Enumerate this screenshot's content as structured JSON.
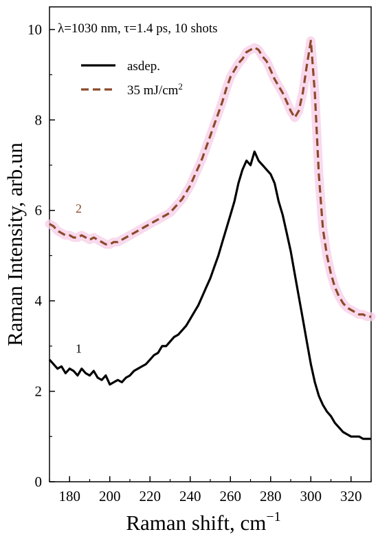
{
  "chart_data": {
    "type": "line",
    "annotation": "λ=1030 nm, τ=1.4 ps, 10 shots",
    "xlabel_main": "Raman shift, cm",
    "xlabel_sup": "−1",
    "ylabel": "Raman Intensity, arb.un",
    "xlim": [
      170,
      330
    ],
    "ylim": [
      0,
      10.5
    ],
    "xticks": [
      180,
      200,
      220,
      240,
      260,
      280,
      300,
      320
    ],
    "yticks": [
      0,
      2,
      4,
      6,
      8,
      10
    ],
    "legend_position": "top-left",
    "legend": [
      {
        "series": 0,
        "text": "asdep.",
        "sup": ""
      },
      {
        "series": 1,
        "text": "35 mJ/cm",
        "sup": "2"
      }
    ],
    "curve_labels": [
      {
        "text": "1",
        "x": 183,
        "y": 2.85
      },
      {
        "text": "2",
        "x": 183,
        "y": 5.95
      }
    ],
    "series": [
      {
        "name": "asdep.",
        "color": "#000000",
        "style": "solid",
        "x": [
          170,
          172,
          174,
          176,
          178,
          180,
          182,
          184,
          186,
          188,
          190,
          192,
          194,
          196,
          198,
          200,
          202,
          204,
          206,
          208,
          210,
          212,
          214,
          216,
          218,
          220,
          222,
          224,
          226,
          228,
          230,
          232,
          234,
          236,
          238,
          240,
          242,
          244,
          246,
          248,
          250,
          252,
          254,
          256,
          258,
          260,
          262,
          264,
          266,
          268,
          270,
          272,
          274,
          276,
          278,
          280,
          282,
          284,
          286,
          288,
          290,
          292,
          294,
          296,
          298,
          300,
          302,
          304,
          306,
          308,
          310,
          312,
          314,
          316,
          318,
          320,
          322,
          324,
          326,
          328,
          330
        ],
        "y": [
          2.7,
          2.6,
          2.5,
          2.55,
          2.4,
          2.5,
          2.45,
          2.35,
          2.5,
          2.4,
          2.35,
          2.45,
          2.3,
          2.25,
          2.35,
          2.15,
          2.2,
          2.25,
          2.2,
          2.3,
          2.35,
          2.45,
          2.5,
          2.55,
          2.6,
          2.7,
          2.8,
          2.85,
          3.0,
          3.0,
          3.1,
          3.2,
          3.25,
          3.35,
          3.45,
          3.6,
          3.75,
          3.9,
          4.1,
          4.3,
          4.5,
          4.75,
          5.0,
          5.3,
          5.6,
          5.9,
          6.2,
          6.6,
          6.9,
          7.1,
          7.0,
          7.3,
          7.1,
          7.0,
          6.9,
          6.8,
          6.6,
          6.2,
          5.9,
          5.5,
          5.1,
          4.6,
          4.1,
          3.6,
          3.1,
          2.6,
          2.2,
          1.9,
          1.7,
          1.55,
          1.45,
          1.3,
          1.2,
          1.1,
          1.05,
          1.0,
          1.0,
          1.0,
          0.95,
          0.95,
          0.95
        ]
      },
      {
        "name": "35 mJ/cm²",
        "color": "#8b4a2b",
        "style": "dashed",
        "x": [
          170,
          172,
          174,
          176,
          178,
          180,
          182,
          184,
          186,
          188,
          190,
          192,
          194,
          196,
          198,
          200,
          202,
          204,
          206,
          208,
          210,
          212,
          214,
          216,
          218,
          220,
          222,
          224,
          226,
          228,
          230,
          232,
          234,
          236,
          238,
          240,
          242,
          244,
          246,
          248,
          250,
          252,
          254,
          256,
          258,
          260,
          262,
          264,
          266,
          268,
          270,
          272,
          274,
          276,
          278,
          280,
          282,
          284,
          286,
          288,
          290,
          292,
          294,
          296,
          298,
          300,
          302,
          304,
          306,
          308,
          310,
          312,
          314,
          316,
          318,
          320,
          322,
          324,
          326,
          328,
          330
        ],
        "y": [
          5.7,
          5.65,
          5.55,
          5.5,
          5.45,
          5.45,
          5.4,
          5.4,
          5.45,
          5.4,
          5.35,
          5.4,
          5.35,
          5.3,
          5.25,
          5.25,
          5.3,
          5.3,
          5.35,
          5.4,
          5.45,
          5.5,
          5.55,
          5.6,
          5.65,
          5.7,
          5.75,
          5.8,
          5.85,
          5.9,
          5.95,
          6.05,
          6.15,
          6.25,
          6.4,
          6.55,
          6.75,
          6.95,
          7.15,
          7.4,
          7.65,
          7.9,
          8.15,
          8.4,
          8.7,
          8.95,
          9.1,
          9.25,
          9.35,
          9.5,
          9.55,
          9.6,
          9.55,
          9.4,
          9.3,
          9.1,
          8.9,
          8.75,
          8.6,
          8.4,
          8.2,
          8.05,
          8.2,
          8.6,
          9.2,
          9.75,
          8.6,
          6.8,
          5.6,
          5.0,
          4.6,
          4.3,
          4.1,
          3.95,
          3.85,
          3.8,
          3.75,
          3.7,
          3.7,
          3.65,
          3.65
        ]
      }
    ]
  }
}
